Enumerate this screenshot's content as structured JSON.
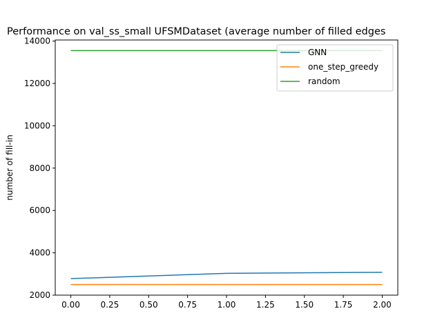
{
  "chart_data": {
    "type": "line",
    "title": "Performance on val_ss_small UFSMDataset (average number of filled edges",
    "xlabel": "",
    "ylabel": "number of fill-in",
    "xlim": [
      -0.1,
      2.1
    ],
    "ylim": [
      2000,
      14050
    ],
    "xticks": [
      0.0,
      0.25,
      0.5,
      0.75,
      1.0,
      1.25,
      1.5,
      1.75,
      2.0
    ],
    "xtick_labels": [
      "0.00",
      "0.25",
      "0.50",
      "0.75",
      "1.00",
      "1.25",
      "1.50",
      "1.75",
      "2.00"
    ],
    "yticks": [
      2000,
      4000,
      6000,
      8000,
      10000,
      12000,
      14000
    ],
    "ytick_labels": [
      "2000",
      "4000",
      "6000",
      "8000",
      "10000",
      "12000",
      "14000"
    ],
    "x": [
      0,
      1,
      2
    ],
    "series": [
      {
        "name": "GNN",
        "values": [
          2780,
          3030,
          3080
        ],
        "color": "#1f77b4"
      },
      {
        "name": "one_step_greedy",
        "values": [
          2500,
          2500,
          2500
        ],
        "color": "#ff7f0e"
      },
      {
        "name": "random",
        "values": [
          13550,
          13550,
          13550
        ],
        "color": "#2ca02c"
      }
    ],
    "legend": {
      "position": "top-right"
    },
    "grid": false
  }
}
